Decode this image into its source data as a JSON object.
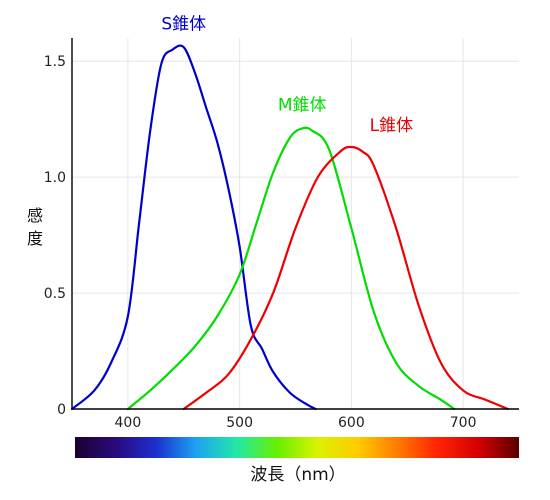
{
  "chart_data": {
    "type": "line",
    "title": "",
    "xlabel": "波長（nm）",
    "ylabel": "感度",
    "xlim": [
      350,
      750
    ],
    "ylim": [
      0,
      1.6
    ],
    "grid": true,
    "x_ticks": [
      "400",
      "500",
      "600",
      "700"
    ],
    "y_ticks": [
      "0",
      "0.5",
      "1.0",
      "1.5"
    ],
    "colorbar": {
      "range": [
        350,
        750
      ],
      "stops": [
        "#1a0033",
        "#2a0a7a",
        "#1c2fd0",
        "#1da3f0",
        "#22e8a8",
        "#66f000",
        "#d9f200",
        "#ffcc00",
        "#ff7a00",
        "#ff2200",
        "#d40000",
        "#5a0000"
      ]
    },
    "series": [
      {
        "name": "S錐体",
        "color": "#0000cc",
        "x": [
          350,
          370,
          385,
          400,
          410,
          420,
          430,
          440,
          450,
          460,
          470,
          480,
          490,
          500,
          510,
          520,
          530,
          545,
          560,
          568
        ],
        "y": [
          0.0,
          0.08,
          0.2,
          0.4,
          0.8,
          1.2,
          1.49,
          1.55,
          1.56,
          1.45,
          1.3,
          1.15,
          0.95,
          0.7,
          0.36,
          0.26,
          0.16,
          0.07,
          0.02,
          0.0
        ]
      },
      {
        "name": "M錐体",
        "color": "#00dd00",
        "x": [
          400,
          420,
          440,
          460,
          480,
          500,
          515,
          530,
          545,
          556,
          565,
          580,
          600,
          620,
          640,
          660,
          680,
          692
        ],
        "y": [
          0.0,
          0.08,
          0.17,
          0.27,
          0.4,
          0.58,
          0.8,
          1.02,
          1.17,
          1.21,
          1.2,
          1.12,
          0.78,
          0.42,
          0.2,
          0.1,
          0.04,
          0.0
        ]
      },
      {
        "name": "L錐体",
        "color": "#ee0000",
        "x": [
          450,
          470,
          490,
          510,
          530,
          550,
          570,
          590,
          600,
          610,
          620,
          640,
          660,
          680,
          700,
          720,
          740
        ],
        "y": [
          0.0,
          0.07,
          0.15,
          0.3,
          0.5,
          0.78,
          1.0,
          1.11,
          1.13,
          1.11,
          1.05,
          0.78,
          0.45,
          0.2,
          0.08,
          0.04,
          0.0
        ]
      }
    ]
  }
}
